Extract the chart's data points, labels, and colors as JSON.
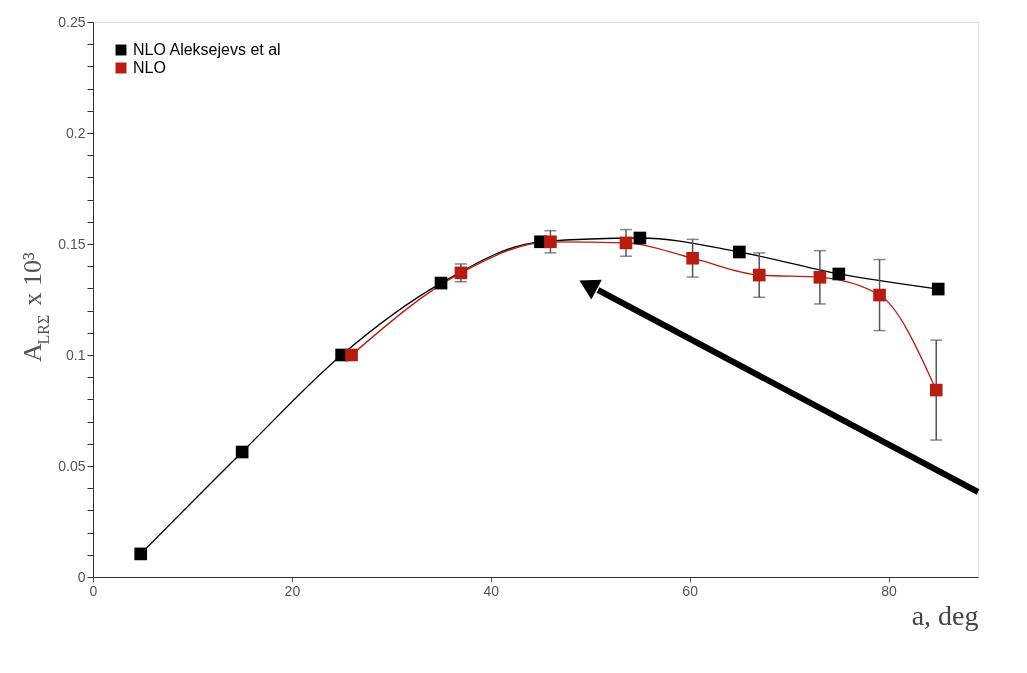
{
  "chart_data": {
    "type": "line",
    "xlabel": "a, deg",
    "ylabel": "A$_{LRΣ}$ x 10³",
    "xlim": [
      0,
      89
    ],
    "xticks": [
      0,
      20,
      40,
      60,
      80
    ],
    "ylim": [
      0,
      0.25
    ],
    "yticks": [
      0,
      {
        "value": 0.01,
        "label": null
      },
      {
        "value": 0.02,
        "label": null
      },
      {
        "value": 0.03,
        "label": null
      },
      {
        "value": 0.04,
        "label": null
      },
      0.05,
      {
        "value": 0.06,
        "label": null
      },
      {
        "value": 0.07,
        "label": null
      },
      {
        "value": 0.08,
        "label": null
      },
      {
        "value": 0.09,
        "label": null
      },
      0.1,
      {
        "value": 0.11,
        "label": null
      },
      {
        "value": 0.12,
        "label": null
      },
      {
        "value": 0.13,
        "label": null
      },
      {
        "value": 0.14,
        "label": null
      },
      0.15,
      {
        "value": 0.16,
        "label": null
      },
      {
        "value": 0.17,
        "label": null
      },
      {
        "value": 0.18,
        "label": null
      },
      {
        "value": 0.19,
        "label": null
      },
      0.2,
      {
        "value": 0.21,
        "label": null
      },
      {
        "value": 0.22,
        "label": null
      },
      {
        "value": 0.23,
        "label": null
      },
      {
        "value": 0.24,
        "label": null
      },
      0.25
    ],
    "grid": false,
    "legend": "top left",
    "marker": "square",
    "line_style": "solid",
    "series": [
      {
        "name": "NLO   Aleksejevs et al",
        "color": "#000000",
        "x": [
          4.8,
          15,
          25,
          35,
          45,
          55,
          65,
          75,
          85
        ],
        "values": [
          0.0104,
          0.0563,
          0.1,
          0.1324,
          0.151,
          0.1527,
          0.1464,
          0.1365,
          0.1297
        ]
      },
      {
        "name": "NLO",
        "color": "#b81c10",
        "x": [
          26,
          37,
          46,
          53.6,
          60.3,
          67,
          73.1,
          79.1,
          84.8
        ],
        "values": [
          0.1,
          0.137,
          0.151,
          0.1505,
          0.1436,
          0.136,
          0.135,
          0.127,
          0.0842
        ],
        "errors": [
          null,
          0.004,
          0.005,
          0.006,
          0.0085,
          0.01,
          0.012,
          0.016,
          0.0225
        ]
      }
    ]
  }
}
